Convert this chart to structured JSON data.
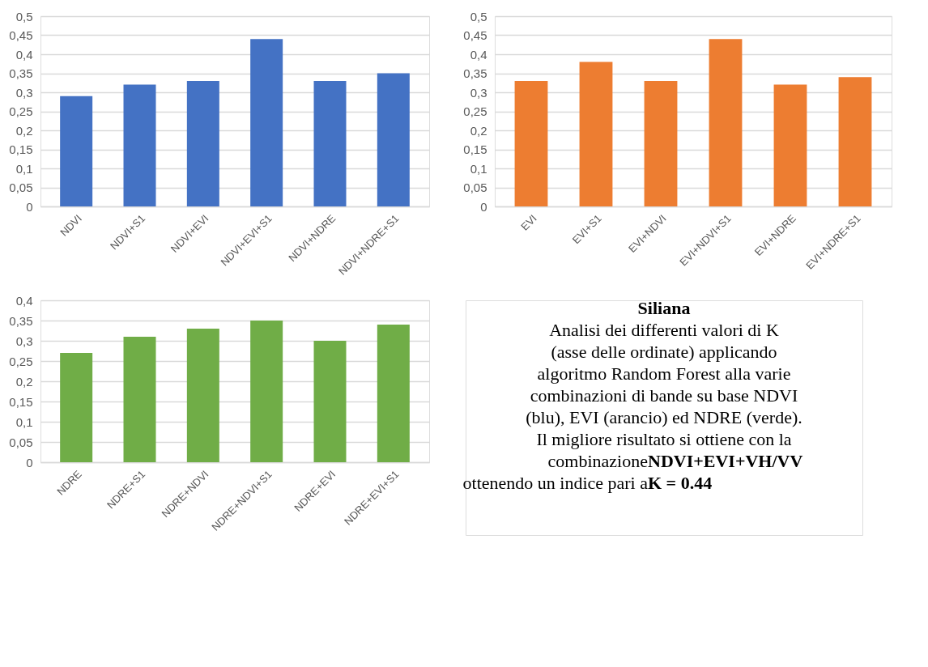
{
  "chart_data": [
    {
      "type": "bar",
      "categories": [
        "NDVI",
        "NDVI+S1",
        "NDVI+EVI",
        "NDVI+EVI+S1",
        "NDVI+NDRE",
        "NDVI+NDRE+S1"
      ],
      "values": [
        0.29,
        0.32,
        0.33,
        0.44,
        0.33,
        0.35
      ],
      "color": "#4472c4",
      "ylim": [
        0,
        0.5
      ],
      "yticks": [
        {
          "value": 0,
          "label": "0"
        },
        {
          "value": 0.05,
          "label": "0,05"
        },
        {
          "value": 0.1,
          "label": "0,1"
        },
        {
          "value": 0.15,
          "label": "0,15"
        },
        {
          "value": 0.2,
          "label": "0,2"
        },
        {
          "value": 0.25,
          "label": "0,25"
        },
        {
          "value": 0.3,
          "label": "0,3"
        },
        {
          "value": 0.35,
          "label": "0,35"
        },
        {
          "value": 0.4,
          "label": "0,4"
        },
        {
          "value": 0.45,
          "label": "0,45"
        },
        {
          "value": 0.5,
          "label": "0,5"
        }
      ],
      "grid": "y"
    },
    {
      "type": "bar",
      "categories": [
        "EVI",
        "EVI+S1",
        "EVI+NDVI",
        "EVI+NDVI+S1",
        "EVI+NDRE",
        "EVI+NDRE+S1"
      ],
      "values": [
        0.33,
        0.38,
        0.33,
        0.44,
        0.32,
        0.34
      ],
      "color": "#ed7d31",
      "ylim": [
        0,
        0.5
      ],
      "yticks": [
        {
          "value": 0,
          "label": "0"
        },
        {
          "value": 0.05,
          "label": "0,05"
        },
        {
          "value": 0.1,
          "label": "0,1"
        },
        {
          "value": 0.15,
          "label": "0,15"
        },
        {
          "value": 0.2,
          "label": "0,2"
        },
        {
          "value": 0.25,
          "label": "0,25"
        },
        {
          "value": 0.3,
          "label": "0,3"
        },
        {
          "value": 0.35,
          "label": "0,35"
        },
        {
          "value": 0.4,
          "label": "0,4"
        },
        {
          "value": 0.45,
          "label": "0,45"
        },
        {
          "value": 0.5,
          "label": "0,5"
        }
      ],
      "grid": "y"
    },
    {
      "type": "bar",
      "categories": [
        "NDRE",
        "NDRE+S1",
        "NDRE+NDVI",
        "NDRE+NDVI+S1",
        "NDRE+EVI",
        "NDRE+EVI+S1"
      ],
      "values": [
        0.27,
        0.31,
        0.33,
        0.35,
        0.3,
        0.34
      ],
      "color": "#70ad47",
      "ylim": [
        0,
        0.4
      ],
      "yticks": [
        {
          "value": 0,
          "label": "0"
        },
        {
          "value": 0.05,
          "label": "0,05"
        },
        {
          "value": 0.1,
          "label": "0,1"
        },
        {
          "value": 0.15,
          "label": "0,15"
        },
        {
          "value": 0.2,
          "label": "0,2"
        },
        {
          "value": 0.25,
          "label": "0,25"
        },
        {
          "value": 0.3,
          "label": "0,3"
        },
        {
          "value": 0.35,
          "label": "0,35"
        },
        {
          "value": 0.4,
          "label": "0,4"
        }
      ],
      "grid": "y"
    },
    {
      "type": "other",
      "title": "Siliana",
      "annotations": [
        "Analisi dei differenti valori di K (asse delle ordinate) applicando algoritmo Random Forest alla varie combinazioni di bande su base NDVI (blu), EVI (arancio) ed NDRE (verde).",
        "Il migliore risultato si ottiene con la",
        "combinazione",
        "NDVI+EVI+VH/VV",
        "ottenendo un indice pari a",
        "K = 0.44"
      ]
    }
  ]
}
